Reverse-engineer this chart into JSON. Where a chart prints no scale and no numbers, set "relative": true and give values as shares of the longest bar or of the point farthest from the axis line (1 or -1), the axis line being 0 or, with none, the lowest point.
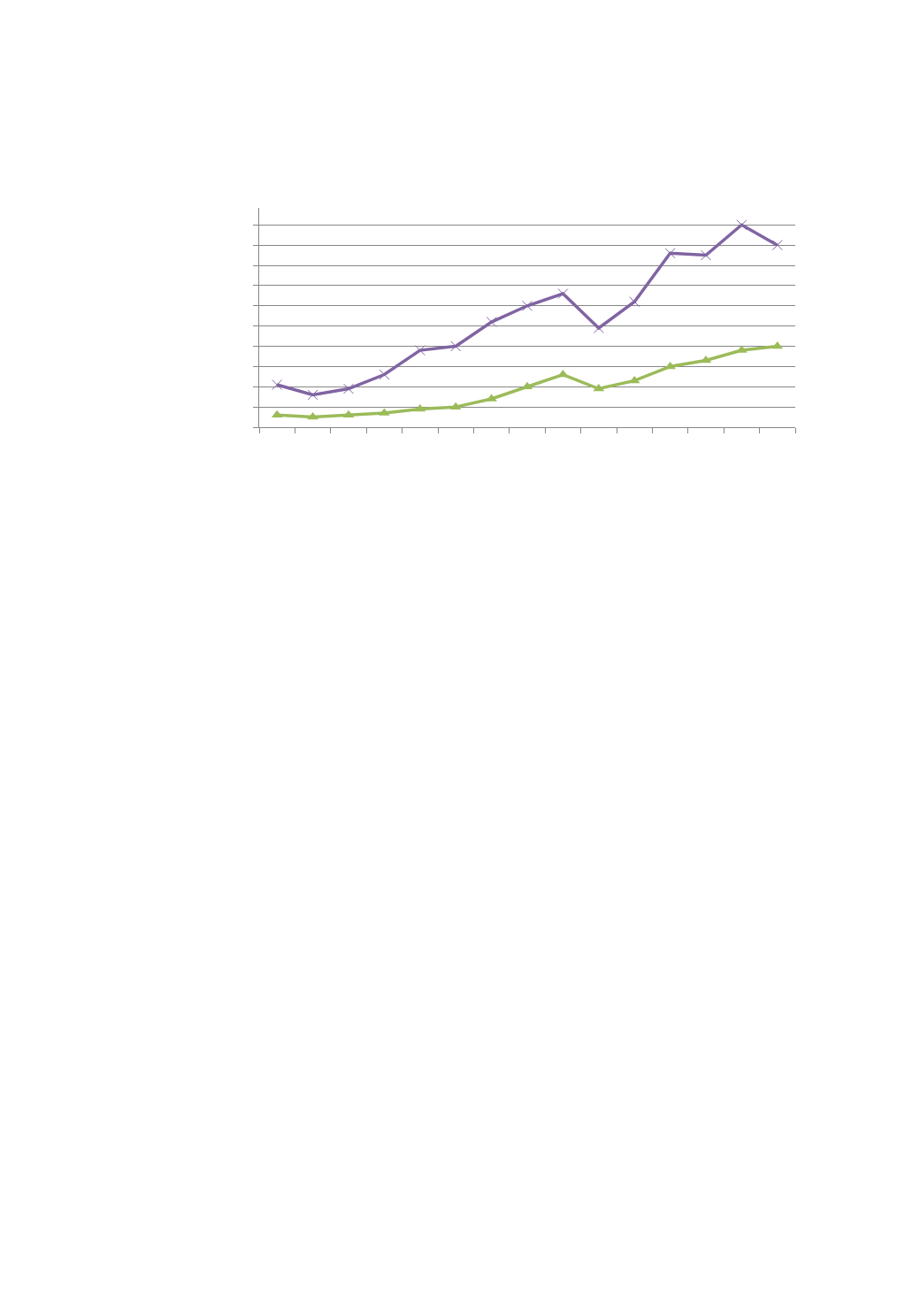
{
  "chart_data": {
    "type": "line",
    "relative": true,
    "grid": "y",
    "line_style": "solid",
    "categories": [
      null,
      null,
      null,
      null,
      null,
      null,
      null,
      null,
      null,
      null,
      null,
      null,
      null,
      null,
      null
    ],
    "series": [
      {
        "color": "#9bbb59",
        "marker": "triangle",
        "values": [
          0.06,
          0.05,
          0.06,
          0.07,
          0.09,
          0.1,
          0.14,
          0.2,
          0.26,
          0.19,
          0.23,
          0.3,
          0.33,
          0.38,
          0.4
        ]
      },
      {
        "color": "#8064a2",
        "marker": "cross",
        "values": [
          0.21,
          0.16,
          0.19,
          0.26,
          0.38,
          0.4,
          0.52,
          0.6,
          0.66,
          0.49,
          0.62,
          0.86,
          0.85,
          1.0,
          0.9
        ]
      }
    ]
  }
}
